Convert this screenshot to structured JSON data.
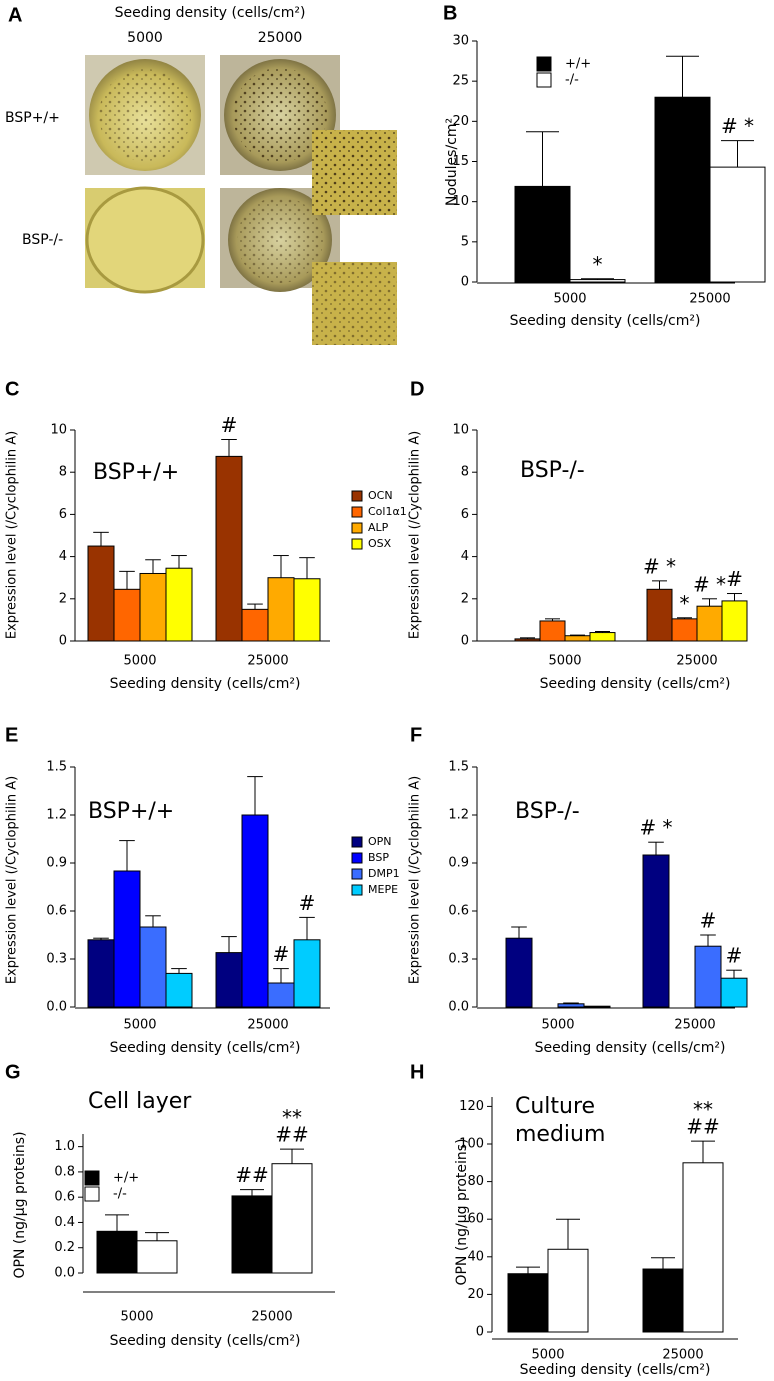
{
  "panel_a": {
    "letter": "A",
    "title": "Seeding density (cells/cm²)",
    "columns": [
      "5000",
      "25000"
    ],
    "rows": [
      "BSP+/+",
      "BSP-/-"
    ]
  },
  "chart_data": [
    {
      "type": "bar",
      "panel": "B",
      "ylabel": "Nodules/cm²",
      "xlabel": "Seeding density (cells/cm²)",
      "categories": [
        "5000",
        "25000"
      ],
      "series": [
        {
          "name": "+/+",
          "color": "#000000",
          "values": [
            11.9,
            23.0
          ],
          "errors": [
            6.8,
            5.1
          ],
          "markers": [
            null,
            null
          ]
        },
        {
          "name": "-/-",
          "color": "#ffffff",
          "values": [
            0.3,
            14.3
          ],
          "errors": [
            0.1,
            3.3
          ],
          "markers": [
            "*",
            "# *"
          ]
        }
      ],
      "ylim": [
        0,
        30
      ],
      "yticks": [
        0,
        5,
        10,
        15,
        20,
        25,
        30
      ],
      "legend": "upper left"
    },
    {
      "type": "bar",
      "panel": "C",
      "inset": "BSP+/+",
      "ylabel": "Expression level (/Cyclophilin A)",
      "xlabel": "Seeding density (cells/cm²)",
      "categories": [
        "5000",
        "25000"
      ],
      "series": [
        {
          "name": "OCN",
          "color": "#993300",
          "values": [
            4.5,
            8.75
          ],
          "errors": [
            0.65,
            0.8
          ],
          "markers": [
            null,
            "#"
          ]
        },
        {
          "name": "Col1α1",
          "color": "#ff6600",
          "values": [
            2.45,
            1.5
          ],
          "errors": [
            0.85,
            0.25
          ],
          "markers": [
            null,
            null
          ]
        },
        {
          "name": "ALP",
          "color": "#ffaa00",
          "values": [
            3.2,
            3.0
          ],
          "errors": [
            0.65,
            1.05
          ],
          "markers": [
            null,
            null
          ]
        },
        {
          "name": "OSX",
          "color": "#ffff00",
          "values": [
            3.45,
            2.95
          ],
          "errors": [
            0.6,
            1.0
          ],
          "markers": [
            null,
            null
          ]
        }
      ],
      "ylim": [
        0,
        10
      ],
      "yticks": [
        0,
        2,
        4,
        6,
        8,
        10
      ],
      "legend": "right"
    },
    {
      "type": "bar",
      "panel": "D",
      "inset": "BSP-/-",
      "ylabel": "Expression level (/Cyclophilin A)",
      "xlabel": "Seeding density (cells/cm²)",
      "categories": [
        "5000",
        "25000"
      ],
      "series": [
        {
          "color": "#993300",
          "values": [
            0.1,
            2.45
          ],
          "errors": [
            0.05,
            0.4
          ],
          "markers": [
            null,
            "# *"
          ]
        },
        {
          "color": "#ff6600",
          "values": [
            0.95,
            1.05
          ],
          "errors": [
            0.1,
            0.05
          ],
          "markers": [
            null,
            "*"
          ]
        },
        {
          "color": "#ffaa00",
          "values": [
            0.25,
            1.65
          ],
          "errors": [
            0.03,
            0.35
          ],
          "markers": [
            null,
            "# *"
          ]
        },
        {
          "color": "#ffff00",
          "values": [
            0.4,
            1.9
          ],
          "errors": [
            0.05,
            0.35
          ],
          "markers": [
            null,
            "#"
          ]
        }
      ],
      "ylim": [
        0,
        10
      ],
      "yticks": [
        0,
        2,
        4,
        6,
        8,
        10
      ]
    },
    {
      "type": "bar",
      "panel": "E",
      "inset": "BSP+/+",
      "ylabel": "Expression level (/Cyclophilin A)",
      "xlabel": "Seeding density (cells/cm²)",
      "categories": [
        "5000",
        "25000"
      ],
      "series": [
        {
          "name": "OPN",
          "color": "#000080",
          "values": [
            0.42,
            0.34
          ],
          "errors": [
            0.01,
            0.1
          ],
          "markers": [
            null,
            null
          ]
        },
        {
          "name": "BSP",
          "color": "#0000ff",
          "values": [
            0.85,
            1.2
          ],
          "errors": [
            0.19,
            0.24
          ],
          "markers": [
            null,
            null
          ]
        },
        {
          "name": "DMP1",
          "color": "#3a6dff",
          "values": [
            0.5,
            0.15
          ],
          "errors": [
            0.07,
            0.09
          ],
          "markers": [
            null,
            "#"
          ]
        },
        {
          "name": "MEPE",
          "color": "#00ccff",
          "values": [
            0.21,
            0.42
          ],
          "errors": [
            0.03,
            0.14
          ],
          "markers": [
            null,
            "#"
          ]
        }
      ],
      "ylim": [
        0,
        1.5
      ],
      "yticks": [
        {
          "value": 0,
          "label": "0.0"
        },
        0.3,
        0.6,
        0.9,
        1.2,
        1.5
      ],
      "legend": "right"
    },
    {
      "type": "bar",
      "panel": "F",
      "inset": "BSP-/-",
      "ylabel": "Expression level (/Cyclophilin A)",
      "xlabel": "Seeding density (cells/cm²)",
      "categories": [
        "5000",
        "25000"
      ],
      "series": [
        {
          "color": "#000080",
          "values": [
            0.43,
            0.95
          ],
          "errors": [
            0.07,
            0.08
          ],
          "markers": [
            null,
            "# *"
          ]
        },
        {
          "color": "#0000ff",
          "values": [
            0,
            0
          ],
          "errors": [
            null,
            null
          ],
          "markers": [
            null,
            null
          ]
        },
        {
          "color": "#3a6dff",
          "values": [
            0.02,
            0.38
          ],
          "errors": [
            0.005,
            0.07
          ],
          "markers": [
            null,
            "#"
          ]
        },
        {
          "color": "#00ccff",
          "values": [
            0.005,
            0.18
          ],
          "errors": [
            null,
            0.05
          ],
          "markers": [
            null,
            "#"
          ]
        }
      ],
      "ylim": [
        0,
        1.5
      ],
      "yticks": [
        {
          "value": 0,
          "label": "0.0"
        },
        0.3,
        0.6,
        0.9,
        1.2,
        1.5
      ]
    },
    {
      "type": "bar",
      "panel": "G",
      "inset": "Cell layer",
      "ylabel": "OPN (ng/µg proteins)",
      "xlabel": "Seeding density (cells/cm²)",
      "categories": [
        "5000",
        "25000"
      ],
      "series": [
        {
          "name": "+/+",
          "color": "#000000",
          "values": [
            0.33,
            0.61
          ],
          "errors": [
            0.13,
            0.05
          ],
          "markers": [
            null,
            [
              "##"
            ]
          ]
        },
        {
          "name": "-/-",
          "color": "#ffffff",
          "values": [
            0.255,
            0.865
          ],
          "errors": [
            0.065,
            0.115
          ],
          "markers": [
            null,
            [
              "**",
              "##"
            ]
          ]
        }
      ],
      "ylim": [
        0,
        1.1
      ],
      "yticks": [
        {
          "value": 0,
          "label": "0.0"
        },
        0.2,
        0.4,
        0.6,
        0.8,
        {
          "value": 1,
          "label": "1.0"
        }
      ],
      "legend": "upper left"
    },
    {
      "type": "bar",
      "panel": "H",
      "inset": [
        "Culture",
        "medium"
      ],
      "ylabel": "OPN (ng/µg proteins)",
      "xlabel": "Seeding density (cells/cm²)",
      "categories": [
        "5000",
        "25000"
      ],
      "series": [
        {
          "color": "#000000",
          "values": [
            31,
            33.5
          ],
          "errors": [
            3.5,
            6
          ],
          "markers": [
            null,
            null
          ]
        },
        {
          "color": "#ffffff",
          "values": [
            44,
            90
          ],
          "errors": [
            16,
            11.5
          ],
          "markers": [
            null,
            [
              "**",
              "##"
            ]
          ]
        }
      ],
      "ylim": [
        0,
        125
      ],
      "yticks": [
        0,
        20,
        40,
        60,
        80,
        100,
        120
      ]
    }
  ]
}
